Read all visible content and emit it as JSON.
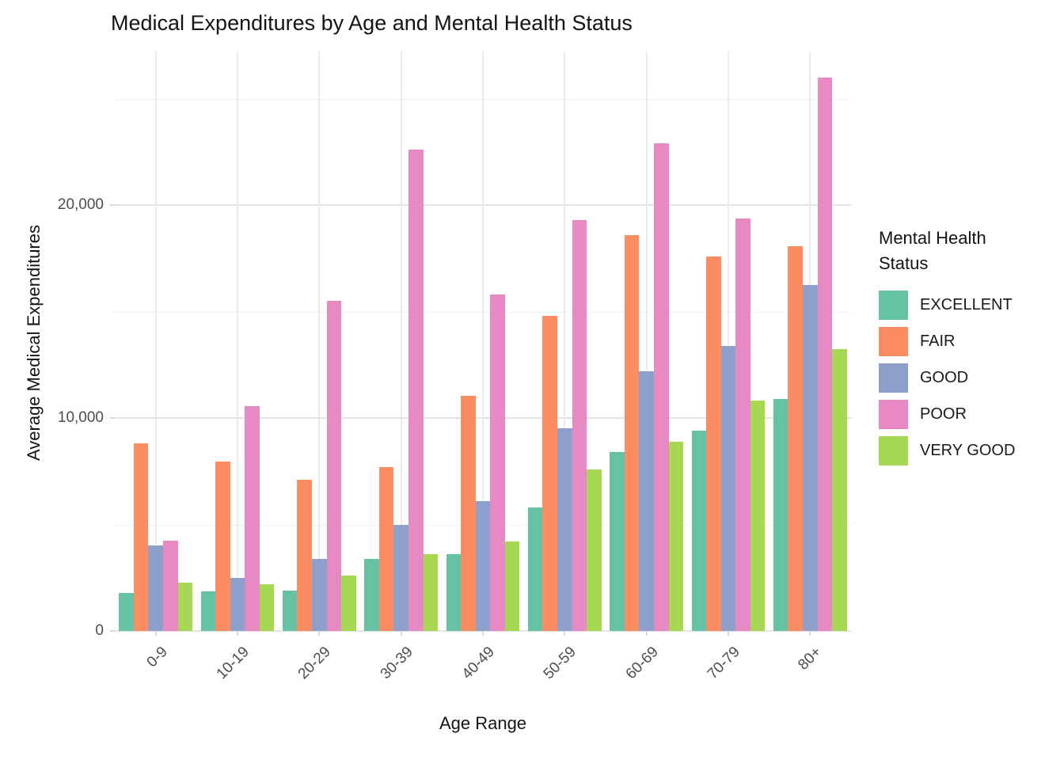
{
  "title": "Medical Expenditures by Age and Mental Health Status",
  "legend": {
    "title": "Mental Health\nStatus",
    "entries": [
      "EXCELLENT",
      "FAIR",
      "GOOD",
      "POOR",
      "VERY GOOD"
    ]
  },
  "chart_data": {
    "type": "bar",
    "title": "Medical Expenditures by Age and Mental Health Status",
    "xlabel": "Age Range",
    "ylabel": "Average Medical Expenditures",
    "categories": [
      "0-9",
      "10-19",
      "20-29",
      "30-39",
      "40-49",
      "50-59",
      "60-69",
      "70-79",
      "80+"
    ],
    "series": [
      {
        "name": "EXCELLENT",
        "color": "#66C2A5",
        "values": [
          1800,
          1850,
          1900,
          3400,
          3600,
          5800,
          8400,
          9400,
          10900
        ]
      },
      {
        "name": "FAIR",
        "color": "#FC8D62",
        "values": [
          8800,
          7950,
          7100,
          7700,
          11050,
          14800,
          18600,
          17600,
          18050
        ]
      },
      {
        "name": "GOOD",
        "color": "#8DA0CB",
        "values": [
          4000,
          2500,
          3400,
          5000,
          6100,
          9500,
          12200,
          13400,
          16250
        ]
      },
      {
        "name": "POOR",
        "color": "#E78AC3",
        "values": [
          4250,
          10550,
          15500,
          22600,
          15800,
          19300,
          22900,
          19350,
          26000
        ]
      },
      {
        "name": "VERY GOOD",
        "color": "#A6D854",
        "values": [
          2270,
          2200,
          2600,
          3600,
          4200,
          7600,
          8900,
          10800,
          13250
        ]
      }
    ],
    "ylim": [
      0,
      27200
    ],
    "yticks": [
      {
        "value": 0,
        "label": "0"
      },
      {
        "value": 10000,
        "label": "10,000"
      },
      {
        "value": 20000,
        "label": "20,000"
      }
    ],
    "minor_yticks": [
      5000,
      15000,
      25000
    ],
    "grid": true,
    "legend_title": "Mental Health Status",
    "legend_position": "right"
  }
}
